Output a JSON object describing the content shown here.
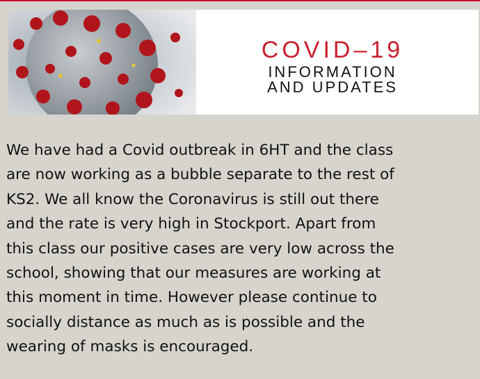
{
  "banner": {
    "title": "COVID–19",
    "subtitle_lines": [
      "INFORMATION",
      "AND UPDATES"
    ]
  },
  "body": {
    "lines": [
      "We have had a Covid outbreak in 6HT and the class",
      "are now working as a bubble separate to the rest of",
      "KS2. We all know the Coronavirus is still out there",
      "and the rate is very high in Stockport. Apart from",
      "this class our positive cases are very low across the",
      "school, showing that our measures are working at",
      "this moment in time. However please continue to",
      "socially distance as much as is possible and the",
      "wearing of masks is encouraged."
    ]
  }
}
